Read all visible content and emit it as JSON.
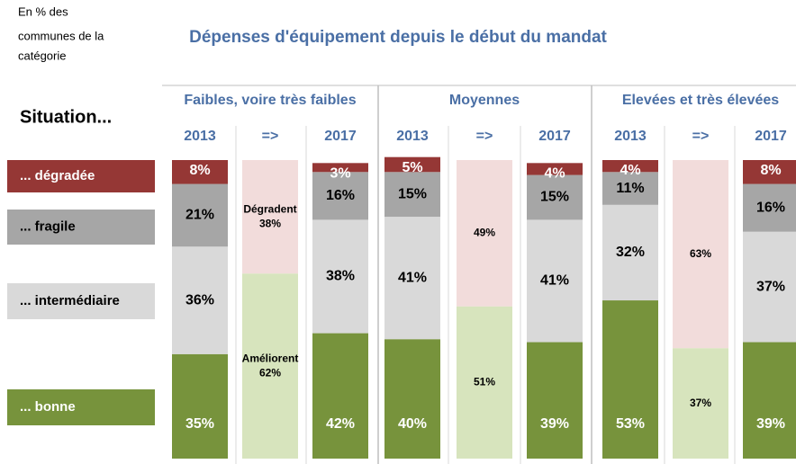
{
  "chart_data": {
    "type": "stacked_bar",
    "title": "Dépenses d'équipement depuis le début du mandat",
    "note": [
      "En % des",
      "communes de la",
      "catégorie"
    ],
    "legend_title": "Situation...",
    "ylim": [
      0,
      100
    ],
    "groups": [
      {
        "name": "Faibles, voire très faibles",
        "columns": [
          "2013",
          "=>",
          "2017"
        ]
      },
      {
        "name": "Moyennes",
        "columns": [
          "2013",
          "=>",
          "2017"
        ]
      },
      {
        "name": "Elevées et très élevées",
        "columns": [
          "2013",
          "=>",
          "2017"
        ]
      }
    ],
    "series": [
      {
        "name": "... bonne",
        "color": "#77933c",
        "label_color": "#ffffff",
        "values": [
          35,
          42,
          40,
          39,
          53,
          39
        ],
        "value_labels": [
          "35%",
          "42%",
          "40%",
          "39%",
          "53%",
          "39%"
        ]
      },
      {
        "name": "... intermédiaire",
        "color": "#d9d9d9",
        "label_color": "#000000",
        "values": [
          36,
          38,
          41,
          41,
          32,
          37
        ],
        "value_labels": [
          "36%",
          "38%",
          "41%",
          "41%",
          "32%",
          "37%"
        ]
      },
      {
        "name": "... fragile",
        "color": "#a6a6a6",
        "label_color": "#000000",
        "values": [
          21,
          16,
          15,
          15,
          11,
          16
        ],
        "value_labels": [
          "21%",
          "16%",
          "15%",
          "15%",
          "11%",
          "16%"
        ]
      },
      {
        "name": "... dégradée",
        "color": "#953735",
        "label_color": "#ffffff",
        "values": [
          8,
          3,
          5,
          4,
          4,
          8
        ],
        "value_labels": [
          "8%",
          "3%",
          "5%",
          "4%",
          "4%",
          "8%"
        ]
      }
    ],
    "transition": [
      {
        "name": "Améliorent",
        "color": "#d7e4bd",
        "values": [
          62,
          51,
          37
        ],
        "value_labels": [
          "62%",
          "51%",
          "37%"
        ]
      },
      {
        "name": "Dégradent",
        "color": "#f2dcdb",
        "values": [
          38,
          49,
          63
        ],
        "value_labels": [
          "38%",
          "49%",
          "63%"
        ]
      }
    ]
  }
}
